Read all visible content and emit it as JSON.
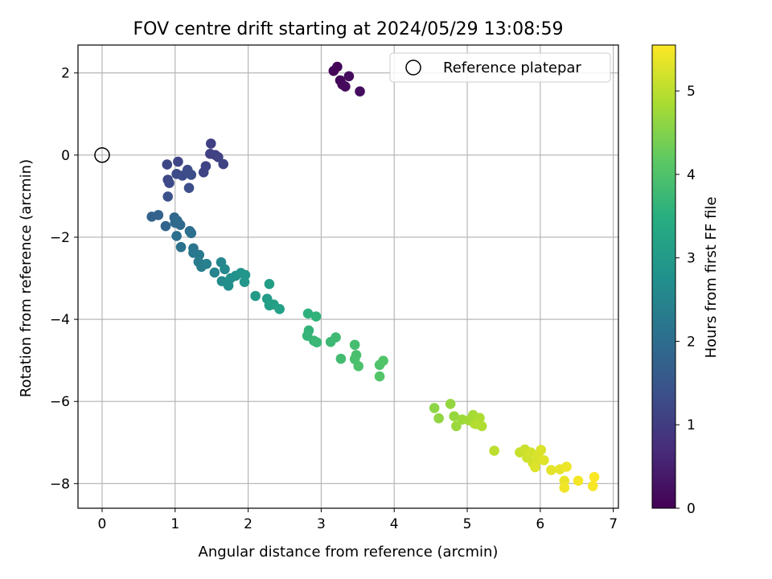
{
  "chart_data": {
    "type": "scatter",
    "title": "FOV centre drift starting at 2024/05/29 13:08:59",
    "xlabel": "Angular distance from reference (arcmin)",
    "ylabel": "Rotation from reference (arcmin)",
    "xlim": [
      -0.33,
      7.07
    ],
    "ylim": [
      -8.6,
      2.68
    ],
    "x_ticks": [
      0,
      1,
      2,
      3,
      4,
      5,
      6,
      7
    ],
    "y_ticks": [
      -8,
      -6,
      -4,
      -2,
      0,
      2
    ],
    "x_tick_labels": [
      "0",
      "1",
      "2",
      "3",
      "4",
      "5",
      "6",
      "7"
    ],
    "y_tick_labels": [
      "−8",
      "−6",
      "−4",
      "−2",
      "0",
      "2"
    ],
    "grid": true,
    "legend": {
      "placement": "top-right",
      "label": "Reference platepar"
    },
    "reference_point": {
      "x": 0,
      "y": 0
    },
    "colorbar": {
      "label": "Hours from first FF file",
      "range": [
        0,
        5.55
      ],
      "ticks": [
        0,
        1,
        2,
        3,
        4,
        5
      ],
      "tick_labels": [
        "0",
        "1",
        "2",
        "3",
        "4",
        "5"
      ],
      "colormap": "viridis",
      "stops": [
        "#440154",
        "#472c7a",
        "#3b518b",
        "#2c718e",
        "#21918c",
        "#27ad81",
        "#5cc863",
        "#aadc32",
        "#fde725"
      ]
    },
    "points": [
      {
        "x": 3.17,
        "y": 2.05,
        "t": 0.05
      },
      {
        "x": 3.22,
        "y": 2.15,
        "t": 0.07
      },
      {
        "x": 3.26,
        "y": 1.82,
        "t": 0.1
      },
      {
        "x": 3.29,
        "y": 1.72,
        "t": 0.12
      },
      {
        "x": 3.33,
        "y": 1.67,
        "t": 0.14
      },
      {
        "x": 3.38,
        "y": 1.92,
        "t": 0.16
      },
      {
        "x": 3.53,
        "y": 1.55,
        "t": 0.2
      },
      {
        "x": 1.49,
        "y": 0.28,
        "t": 1.05
      },
      {
        "x": 1.48,
        "y": 0.03,
        "t": 1.07
      },
      {
        "x": 1.55,
        "y": 0.0,
        "t": 1.08
      },
      {
        "x": 1.59,
        "y": -0.05,
        "t": 1.1
      },
      {
        "x": 1.66,
        "y": -0.22,
        "t": 1.12
      },
      {
        "x": 1.42,
        "y": -0.27,
        "t": 1.13
      },
      {
        "x": 1.39,
        "y": -0.42,
        "t": 1.15
      },
      {
        "x": 1.04,
        "y": -0.16,
        "t": 1.17
      },
      {
        "x": 0.89,
        "y": -0.23,
        "t": 1.2
      },
      {
        "x": 0.9,
        "y": -0.6,
        "t": 1.22
      },
      {
        "x": 0.92,
        "y": -0.68,
        "t": 1.25
      },
      {
        "x": 1.02,
        "y": -0.46,
        "t": 1.27
      },
      {
        "x": 1.1,
        "y": -0.5,
        "t": 1.29
      },
      {
        "x": 1.17,
        "y": -0.36,
        "t": 1.31
      },
      {
        "x": 1.22,
        "y": -0.48,
        "t": 1.33
      },
      {
        "x": 1.19,
        "y": -0.8,
        "t": 1.35
      },
      {
        "x": 0.9,
        "y": -1.01,
        "t": 1.4
      },
      {
        "x": 0.68,
        "y": -1.5,
        "t": 1.75
      },
      {
        "x": 0.77,
        "y": -1.46,
        "t": 1.78
      },
      {
        "x": 0.87,
        "y": -1.73,
        "t": 1.82
      },
      {
        "x": 0.99,
        "y": -1.52,
        "t": 1.86
      },
      {
        "x": 1.03,
        "y": -1.6,
        "t": 1.9
      },
      {
        "x": 1.07,
        "y": -1.7,
        "t": 1.93
      },
      {
        "x": 1.0,
        "y": -1.65,
        "t": 1.96
      },
      {
        "x": 1.2,
        "y": -1.85,
        "t": 2.0
      },
      {
        "x": 1.22,
        "y": -1.9,
        "t": 2.03
      },
      {
        "x": 1.02,
        "y": -1.97,
        "t": 2.06
      },
      {
        "x": 1.08,
        "y": -2.24,
        "t": 2.1
      },
      {
        "x": 1.25,
        "y": -2.27,
        "t": 2.15
      },
      {
        "x": 1.25,
        "y": -2.38,
        "t": 2.2
      },
      {
        "x": 1.33,
        "y": -2.43,
        "t": 2.25
      },
      {
        "x": 1.32,
        "y": -2.6,
        "t": 2.3
      },
      {
        "x": 1.36,
        "y": -2.72,
        "t": 2.35
      },
      {
        "x": 1.43,
        "y": -2.65,
        "t": 2.4
      },
      {
        "x": 1.54,
        "y": -2.86,
        "t": 2.5
      },
      {
        "x": 1.63,
        "y": -2.61,
        "t": 2.55
      },
      {
        "x": 1.68,
        "y": -2.78,
        "t": 2.6
      },
      {
        "x": 1.64,
        "y": -3.07,
        "t": 2.65
      },
      {
        "x": 1.73,
        "y": -3.18,
        "t": 2.7
      },
      {
        "x": 1.76,
        "y": -3.0,
        "t": 2.75
      },
      {
        "x": 1.83,
        "y": -2.94,
        "t": 2.8
      },
      {
        "x": 1.9,
        "y": -2.87,
        "t": 2.85
      },
      {
        "x": 1.96,
        "y": -2.92,
        "t": 2.9
      },
      {
        "x": 1.95,
        "y": -3.09,
        "t": 2.93
      },
      {
        "x": 2.1,
        "y": -3.43,
        "t": 3.0
      },
      {
        "x": 2.26,
        "y": -3.5,
        "t": 3.05
      },
      {
        "x": 2.29,
        "y": -3.14,
        "t": 3.08
      },
      {
        "x": 2.29,
        "y": -3.66,
        "t": 3.1
      },
      {
        "x": 2.35,
        "y": -3.64,
        "t": 3.13
      },
      {
        "x": 2.43,
        "y": -3.75,
        "t": 3.17
      },
      {
        "x": 2.82,
        "y": -3.86,
        "t": 3.55
      },
      {
        "x": 2.93,
        "y": -3.93,
        "t": 3.6
      },
      {
        "x": 2.83,
        "y": -4.27,
        "t": 3.63
      },
      {
        "x": 2.81,
        "y": -4.4,
        "t": 3.66
      },
      {
        "x": 2.9,
        "y": -4.52,
        "t": 3.7
      },
      {
        "x": 2.94,
        "y": -4.56,
        "t": 3.73
      },
      {
        "x": 3.13,
        "y": -4.55,
        "t": 3.76
      },
      {
        "x": 3.2,
        "y": -4.44,
        "t": 3.8
      },
      {
        "x": 3.27,
        "y": -4.96,
        "t": 3.83
      },
      {
        "x": 3.46,
        "y": -4.62,
        "t": 3.87
      },
      {
        "x": 3.48,
        "y": -4.87,
        "t": 3.9
      },
      {
        "x": 3.46,
        "y": -4.97,
        "t": 3.93
      },
      {
        "x": 3.51,
        "y": -5.14,
        "t": 3.96
      },
      {
        "x": 3.8,
        "y": -5.11,
        "t": 4.0
      },
      {
        "x": 3.85,
        "y": -5.01,
        "t": 4.03
      },
      {
        "x": 3.8,
        "y": -5.39,
        "t": 4.05
      },
      {
        "x": 4.55,
        "y": -6.16,
        "t": 4.6
      },
      {
        "x": 4.61,
        "y": -6.41,
        "t": 4.63
      },
      {
        "x": 4.77,
        "y": -6.06,
        "t": 4.66
      },
      {
        "x": 4.82,
        "y": -6.36,
        "t": 4.69
      },
      {
        "x": 4.85,
        "y": -6.6,
        "t": 4.72
      },
      {
        "x": 4.93,
        "y": -6.44,
        "t": 4.75
      },
      {
        "x": 5.02,
        "y": -6.46,
        "t": 4.78
      },
      {
        "x": 5.08,
        "y": -6.33,
        "t": 4.81
      },
      {
        "x": 5.1,
        "y": -6.54,
        "t": 4.84
      },
      {
        "x": 5.17,
        "y": -6.4,
        "t": 4.87
      },
      {
        "x": 5.2,
        "y": -6.6,
        "t": 4.9
      },
      {
        "x": 5.12,
        "y": -6.55,
        "t": 4.93
      },
      {
        "x": 5.37,
        "y": -7.2,
        "t": 5.0
      },
      {
        "x": 5.72,
        "y": -7.24,
        "t": 5.1
      },
      {
        "x": 5.79,
        "y": -7.17,
        "t": 5.13
      },
      {
        "x": 5.82,
        "y": -7.37,
        "t": 5.16
      },
      {
        "x": 5.87,
        "y": -7.24,
        "t": 5.18
      },
      {
        "x": 5.9,
        "y": -7.5,
        "t": 5.2
      },
      {
        "x": 5.95,
        "y": -7.44,
        "t": 5.22
      },
      {
        "x": 5.97,
        "y": -7.3,
        "t": 5.24
      },
      {
        "x": 6.01,
        "y": -7.18,
        "t": 5.26
      },
      {
        "x": 5.93,
        "y": -7.6,
        "t": 5.28
      },
      {
        "x": 6.05,
        "y": -7.43,
        "t": 5.3
      },
      {
        "x": 6.15,
        "y": -7.67,
        "t": 5.33
      },
      {
        "x": 6.27,
        "y": -7.65,
        "t": 5.36
      },
      {
        "x": 6.33,
        "y": -7.93,
        "t": 5.39
      },
      {
        "x": 6.36,
        "y": -7.59,
        "t": 5.42
      },
      {
        "x": 6.33,
        "y": -8.1,
        "t": 5.44
      },
      {
        "x": 6.52,
        "y": -7.93,
        "t": 5.47
      },
      {
        "x": 6.72,
        "y": -8.06,
        "t": 5.5
      },
      {
        "x": 6.74,
        "y": -7.84,
        "t": 5.53
      }
    ]
  }
}
